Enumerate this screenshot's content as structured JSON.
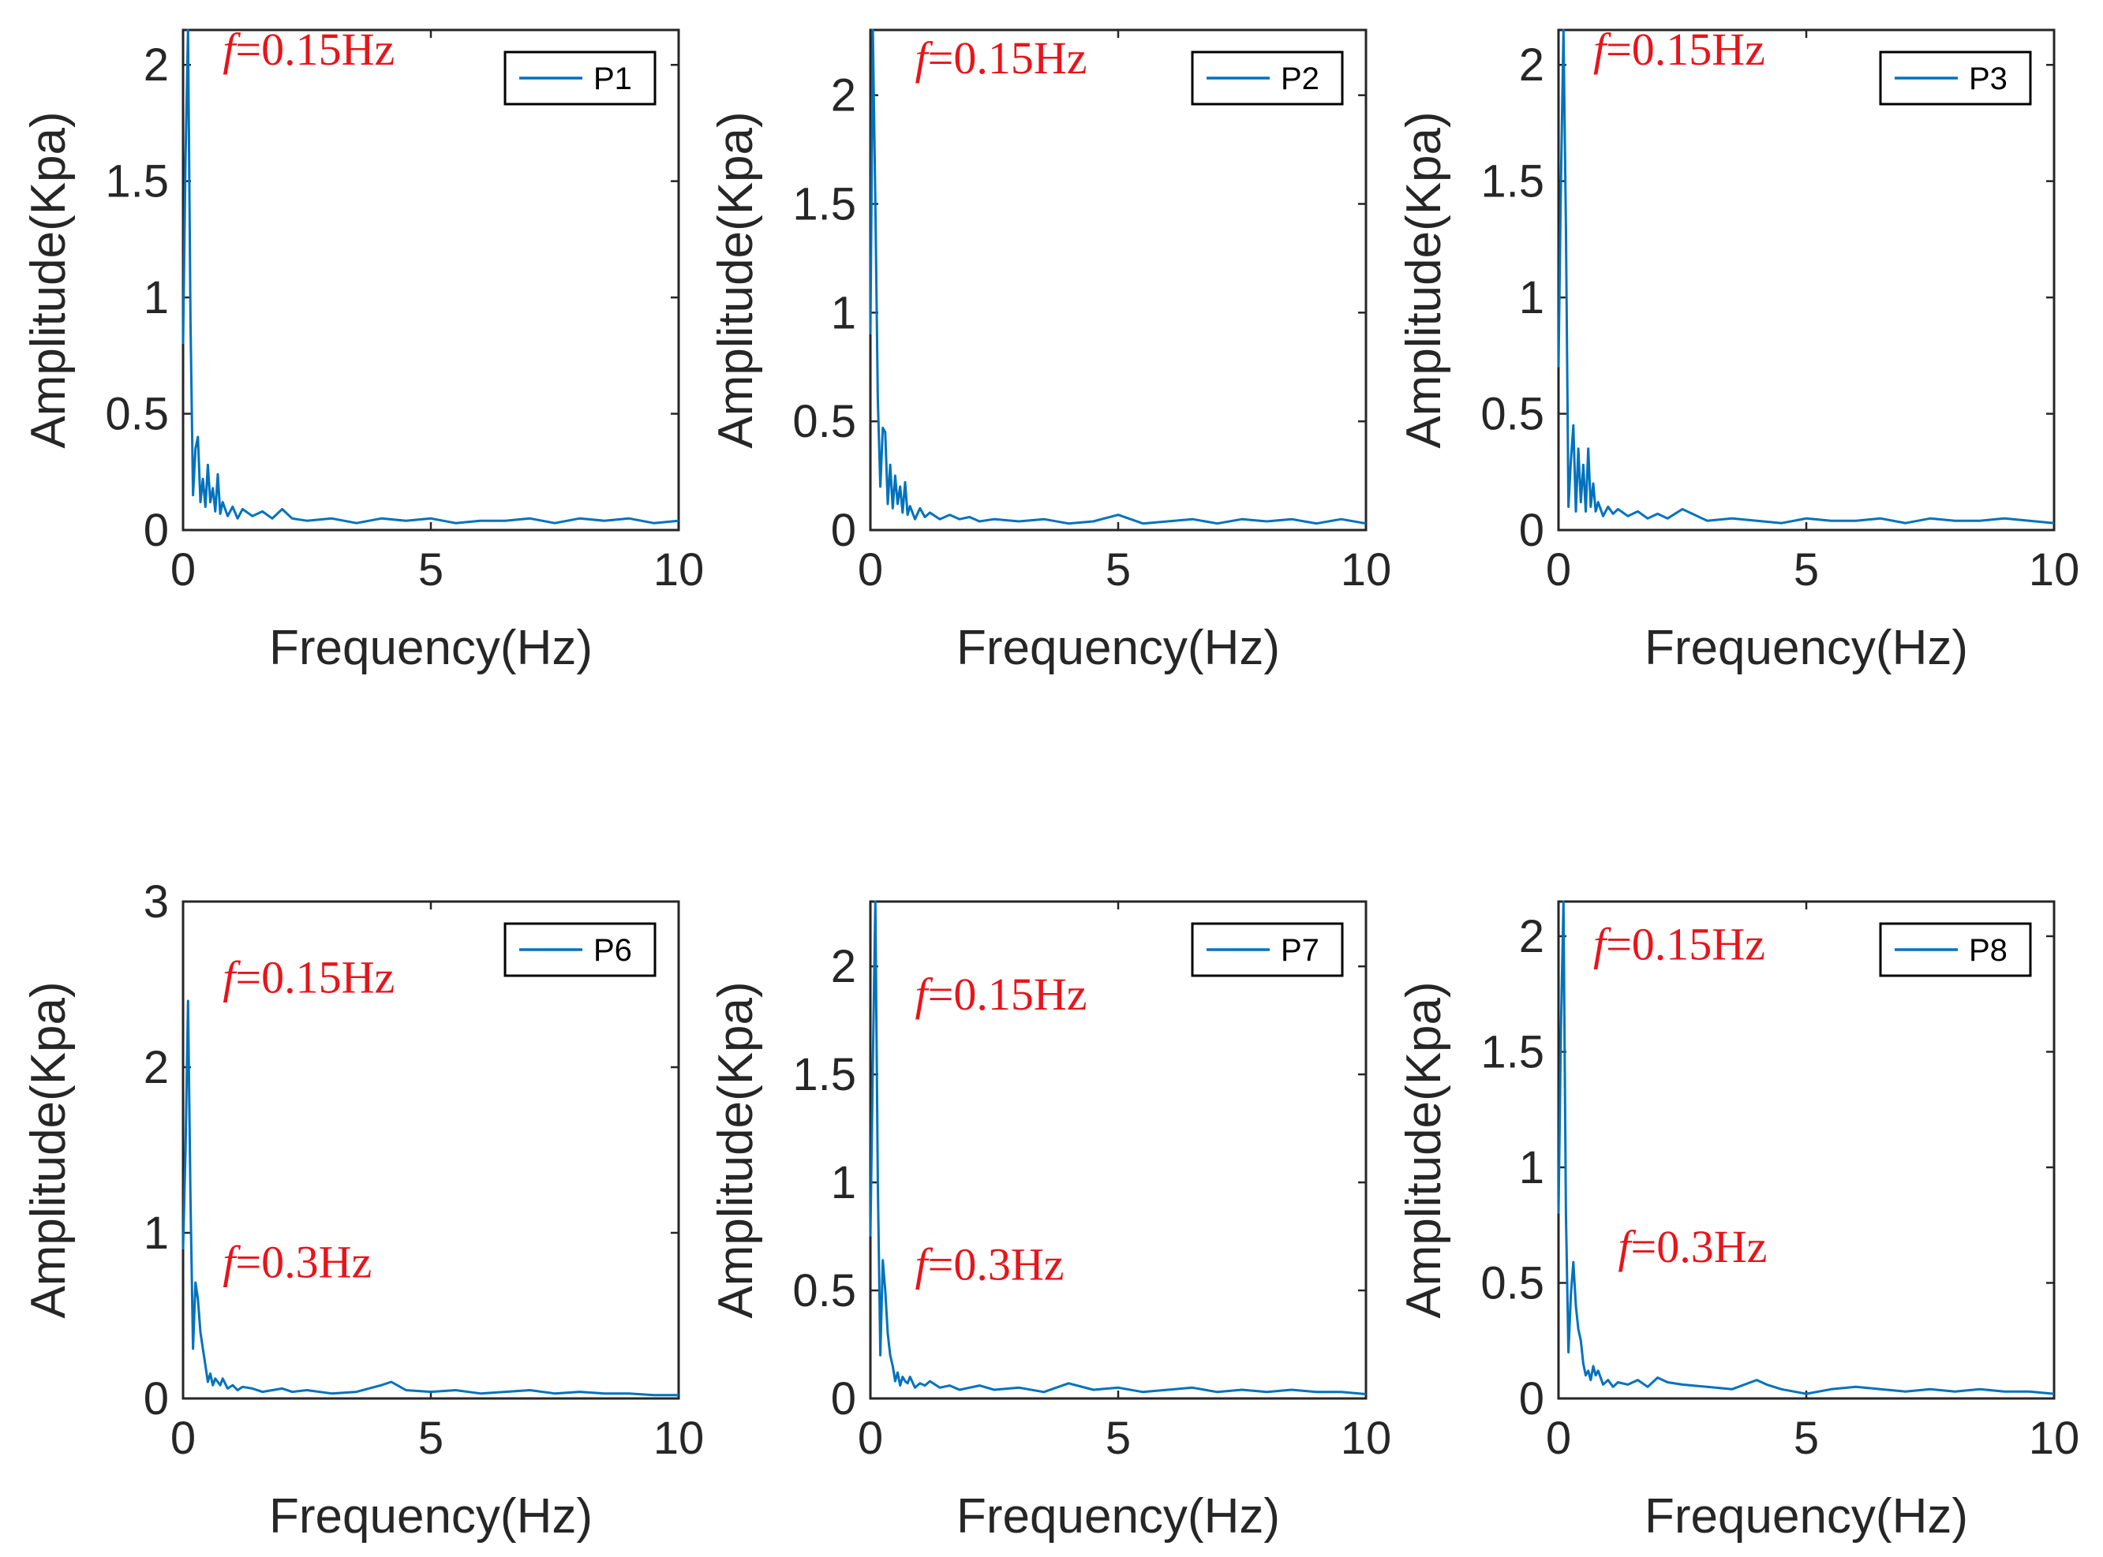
{
  "figure": {
    "line_color": "#0072BD",
    "annotation_color": "#E8141B",
    "axis_color": "#262626"
  },
  "chart_data": [
    {
      "type": "line",
      "legend_placement": "top-right",
      "xlabel": "Frequency(Hz)",
      "ylabel": "Amplitude(Kpa)",
      "xlim": [
        0,
        10
      ],
      "ylim": [
        0,
        2.15
      ],
      "xticks": [
        "0",
        "5",
        "10"
      ],
      "yticks": [
        "0",
        "0.5",
        "1",
        "1.5",
        "2"
      ],
      "annotations": [
        {
          "f": "f",
          "text": "=0.15Hz",
          "x": 0.8,
          "y": 2.0
        }
      ],
      "series": [
        {
          "name": "P1",
          "x": [
            0,
            0.05,
            0.1,
            0.15,
            0.2,
            0.25,
            0.3,
            0.35,
            0.4,
            0.45,
            0.5,
            0.55,
            0.6,
            0.65,
            0.7,
            0.75,
            0.8,
            0.9,
            1.0,
            1.1,
            1.2,
            1.4,
            1.6,
            1.8,
            2.0,
            2.2,
            2.5,
            3.0,
            3.5,
            4.0,
            4.5,
            5.0,
            5.5,
            6.0,
            6.5,
            7.0,
            7.5,
            8.0,
            8.5,
            9.0,
            9.5,
            10.0
          ],
          "y": [
            0.8,
            1.6,
            2.15,
            0.9,
            0.15,
            0.35,
            0.4,
            0.12,
            0.22,
            0.1,
            0.28,
            0.12,
            0.18,
            0.08,
            0.24,
            0.07,
            0.12,
            0.06,
            0.1,
            0.05,
            0.09,
            0.06,
            0.08,
            0.05,
            0.09,
            0.05,
            0.04,
            0.05,
            0.03,
            0.05,
            0.04,
            0.05,
            0.03,
            0.04,
            0.04,
            0.05,
            0.03,
            0.05,
            0.04,
            0.05,
            0.03,
            0.04
          ]
        }
      ]
    },
    {
      "type": "line",
      "legend_placement": "top-right",
      "xlabel": "Frequency(Hz)",
      "ylabel": "Amplitude(Kpa)",
      "xlim": [
        0,
        10
      ],
      "ylim": [
        0,
        2.3
      ],
      "xticks": [
        "0",
        "5",
        "10"
      ],
      "yticks": [
        "0",
        "0.5",
        "1",
        "1.5",
        "2"
      ],
      "annotations": [
        {
          "f": "f",
          "text": "=0.15Hz",
          "x": 0.9,
          "y": 2.1
        }
      ],
      "series": [
        {
          "name": "P2",
          "x": [
            0,
            0.05,
            0.1,
            0.15,
            0.2,
            0.25,
            0.3,
            0.35,
            0.4,
            0.45,
            0.5,
            0.55,
            0.6,
            0.65,
            0.7,
            0.75,
            0.8,
            0.9,
            1.0,
            1.1,
            1.2,
            1.4,
            1.6,
            1.8,
            2.0,
            2.2,
            2.5,
            3.0,
            3.5,
            4.0,
            4.5,
            5.0,
            5.5,
            6.0,
            6.5,
            7.0,
            7.5,
            8.0,
            8.5,
            9.0,
            9.5,
            10.0
          ],
          "y": [
            0.9,
            2.3,
            1.5,
            0.6,
            0.2,
            0.47,
            0.45,
            0.12,
            0.3,
            0.1,
            0.25,
            0.12,
            0.2,
            0.08,
            0.22,
            0.07,
            0.11,
            0.05,
            0.1,
            0.06,
            0.08,
            0.05,
            0.07,
            0.05,
            0.06,
            0.04,
            0.05,
            0.04,
            0.05,
            0.03,
            0.04,
            0.07,
            0.03,
            0.04,
            0.05,
            0.03,
            0.05,
            0.04,
            0.05,
            0.03,
            0.05,
            0.03
          ]
        }
      ]
    },
    {
      "type": "line",
      "legend_placement": "top-right",
      "xlabel": "Frequency(Hz)",
      "ylabel": "Amplitude(Kpa)",
      "xlim": [
        0,
        10
      ],
      "ylim": [
        0,
        2.15
      ],
      "xticks": [
        "0",
        "5",
        "10"
      ],
      "yticks": [
        "0",
        "0.5",
        "1",
        "1.5",
        "2"
      ],
      "annotations": [
        {
          "f": "f",
          "text": "=0.15Hz",
          "x": 0.7,
          "y": 2.0
        }
      ],
      "series": [
        {
          "name": "P3",
          "x": [
            0,
            0.05,
            0.1,
            0.15,
            0.2,
            0.25,
            0.3,
            0.35,
            0.4,
            0.45,
            0.5,
            0.55,
            0.6,
            0.65,
            0.7,
            0.75,
            0.8,
            0.9,
            1.0,
            1.1,
            1.2,
            1.4,
            1.6,
            1.8,
            2.0,
            2.2,
            2.5,
            3.0,
            3.5,
            4.0,
            4.5,
            5.0,
            5.5,
            6.0,
            6.5,
            7.0,
            7.5,
            8.0,
            8.5,
            9.0,
            9.5,
            10.0
          ],
          "y": [
            0.7,
            1.5,
            2.15,
            1.3,
            0.1,
            0.3,
            0.45,
            0.08,
            0.35,
            0.12,
            0.28,
            0.08,
            0.35,
            0.1,
            0.2,
            0.08,
            0.12,
            0.06,
            0.1,
            0.07,
            0.09,
            0.06,
            0.08,
            0.05,
            0.07,
            0.05,
            0.09,
            0.04,
            0.05,
            0.04,
            0.03,
            0.05,
            0.04,
            0.04,
            0.05,
            0.03,
            0.05,
            0.04,
            0.04,
            0.05,
            0.04,
            0.03
          ]
        }
      ]
    },
    {
      "type": "line",
      "legend_placement": "top-right",
      "xlabel": "Frequency(Hz)",
      "ylabel": "Amplitude(Kpa)",
      "xlim": [
        0,
        10
      ],
      "ylim": [
        0,
        3
      ],
      "xticks": [
        "0",
        "5",
        "10"
      ],
      "yticks": [
        "0",
        "1",
        "2",
        "3"
      ],
      "annotations": [
        {
          "f": "f",
          "text": "=0.15Hz",
          "x": 0.8,
          "y": 2.45
        },
        {
          "f": "f",
          "text": "=0.3Hz",
          "x": 0.8,
          "y": 0.73
        }
      ],
      "series": [
        {
          "name": "P6",
          "x": [
            0,
            0.05,
            0.1,
            0.15,
            0.2,
            0.25,
            0.3,
            0.35,
            0.4,
            0.45,
            0.5,
            0.55,
            0.6,
            0.65,
            0.7,
            0.75,
            0.8,
            0.9,
            1.0,
            1.1,
            1.2,
            1.4,
            1.6,
            1.8,
            2.0,
            2.2,
            2.5,
            3.0,
            3.5,
            4.0,
            4.2,
            4.5,
            5.0,
            5.5,
            6.0,
            6.5,
            7.0,
            7.5,
            8.0,
            8.5,
            9.0,
            9.5,
            10.0
          ],
          "y": [
            0.9,
            1.5,
            2.4,
            1.2,
            0.3,
            0.7,
            0.6,
            0.4,
            0.3,
            0.2,
            0.1,
            0.15,
            0.08,
            0.12,
            0.1,
            0.08,
            0.12,
            0.06,
            0.08,
            0.05,
            0.07,
            0.06,
            0.04,
            0.05,
            0.06,
            0.04,
            0.05,
            0.03,
            0.04,
            0.08,
            0.1,
            0.05,
            0.04,
            0.05,
            0.03,
            0.04,
            0.05,
            0.03,
            0.04,
            0.03,
            0.03,
            0.02,
            0.02
          ]
        }
      ]
    },
    {
      "type": "line",
      "legend_placement": "top-right",
      "xlabel": "Frequency(Hz)",
      "ylabel": "Amplitude(Kpa)",
      "xlim": [
        0,
        10
      ],
      "ylim": [
        0,
        2.3
      ],
      "xticks": [
        "0",
        "5",
        "10"
      ],
      "yticks": [
        "0",
        "0.5",
        "1",
        "1.5",
        "2"
      ],
      "annotations": [
        {
          "f": "f",
          "text": "=0.15Hz",
          "x": 0.9,
          "y": 1.8
        },
        {
          "f": "f",
          "text": "=0.3Hz",
          "x": 0.9,
          "y": 0.55
        }
      ],
      "series": [
        {
          "name": "P7",
          "x": [
            0,
            0.05,
            0.1,
            0.15,
            0.2,
            0.25,
            0.3,
            0.35,
            0.4,
            0.45,
            0.5,
            0.55,
            0.6,
            0.65,
            0.7,
            0.75,
            0.8,
            0.9,
            1.0,
            1.1,
            1.2,
            1.4,
            1.6,
            1.8,
            2.0,
            2.2,
            2.5,
            3.0,
            3.5,
            4.0,
            4.5,
            5.0,
            5.5,
            6.0,
            6.5,
            7.0,
            7.5,
            8.0,
            8.5,
            9.0,
            9.5,
            10.0
          ],
          "y": [
            0.75,
            1.55,
            2.3,
            1.0,
            0.2,
            0.64,
            0.5,
            0.3,
            0.2,
            0.15,
            0.08,
            0.12,
            0.06,
            0.1,
            0.08,
            0.07,
            0.1,
            0.05,
            0.07,
            0.06,
            0.08,
            0.05,
            0.06,
            0.04,
            0.05,
            0.06,
            0.04,
            0.05,
            0.03,
            0.07,
            0.04,
            0.05,
            0.03,
            0.04,
            0.05,
            0.03,
            0.04,
            0.03,
            0.04,
            0.03,
            0.03,
            0.02
          ]
        }
      ]
    },
    {
      "type": "line",
      "legend_placement": "top-right",
      "xlabel": "Frequency(Hz)",
      "ylabel": "Amplitude(Kpa)",
      "xlim": [
        0,
        10
      ],
      "ylim": [
        0,
        2.15
      ],
      "xticks": [
        "0",
        "5",
        "10"
      ],
      "yticks": [
        "0",
        "0.5",
        "1",
        "1.5",
        "2"
      ],
      "annotations": [
        {
          "f": "f",
          "text": "=0.15Hz",
          "x": 0.7,
          "y": 1.9
        },
        {
          "f": "f",
          "text": "=0.3Hz",
          "x": 1.2,
          "y": 0.59
        }
      ],
      "series": [
        {
          "name": "P8",
          "x": [
            0,
            0.05,
            0.1,
            0.15,
            0.2,
            0.25,
            0.3,
            0.35,
            0.4,
            0.45,
            0.5,
            0.55,
            0.6,
            0.65,
            0.7,
            0.75,
            0.8,
            0.9,
            1.0,
            1.1,
            1.2,
            1.4,
            1.6,
            1.8,
            2.0,
            2.2,
            2.5,
            3.0,
            3.5,
            4.0,
            4.2,
            4.5,
            5.0,
            5.5,
            6.0,
            6.5,
            7.0,
            7.5,
            8.0,
            8.5,
            9.0,
            9.5,
            10.0
          ],
          "y": [
            0.8,
            1.6,
            2.15,
            0.8,
            0.2,
            0.45,
            0.59,
            0.4,
            0.3,
            0.25,
            0.15,
            0.1,
            0.12,
            0.08,
            0.14,
            0.1,
            0.12,
            0.06,
            0.08,
            0.05,
            0.07,
            0.06,
            0.08,
            0.05,
            0.09,
            0.07,
            0.06,
            0.05,
            0.04,
            0.08,
            0.06,
            0.04,
            0.02,
            0.04,
            0.05,
            0.04,
            0.03,
            0.04,
            0.03,
            0.04,
            0.03,
            0.03,
            0.02
          ]
        }
      ]
    }
  ]
}
